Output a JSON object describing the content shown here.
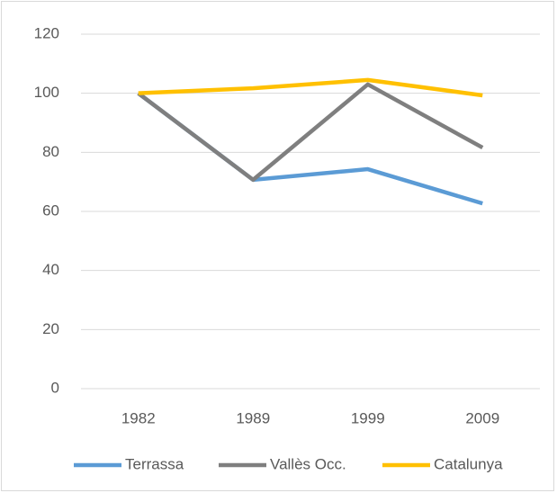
{
  "chart_data": {
    "type": "line",
    "categories": [
      "1982",
      "1989",
      "1999",
      "2009"
    ],
    "series": [
      {
        "name": "Terrassa",
        "color": "#5b9bd5",
        "values": [
          100,
          70.7,
          74.3,
          62.7
        ]
      },
      {
        "name": "Vallès Occ.",
        "color": "#7f7f7f",
        "values": [
          100,
          70.7,
          103,
          81.6
        ]
      },
      {
        "name": "Catalunya",
        "color": "#ffc000",
        "values": [
          100,
          101.7,
          104.5,
          99.3
        ]
      }
    ],
    "ylim": [
      0,
      120
    ],
    "yticks": [
      0,
      20,
      40,
      60,
      80,
      100,
      120
    ],
    "grid": true,
    "legend": "bottom"
  }
}
